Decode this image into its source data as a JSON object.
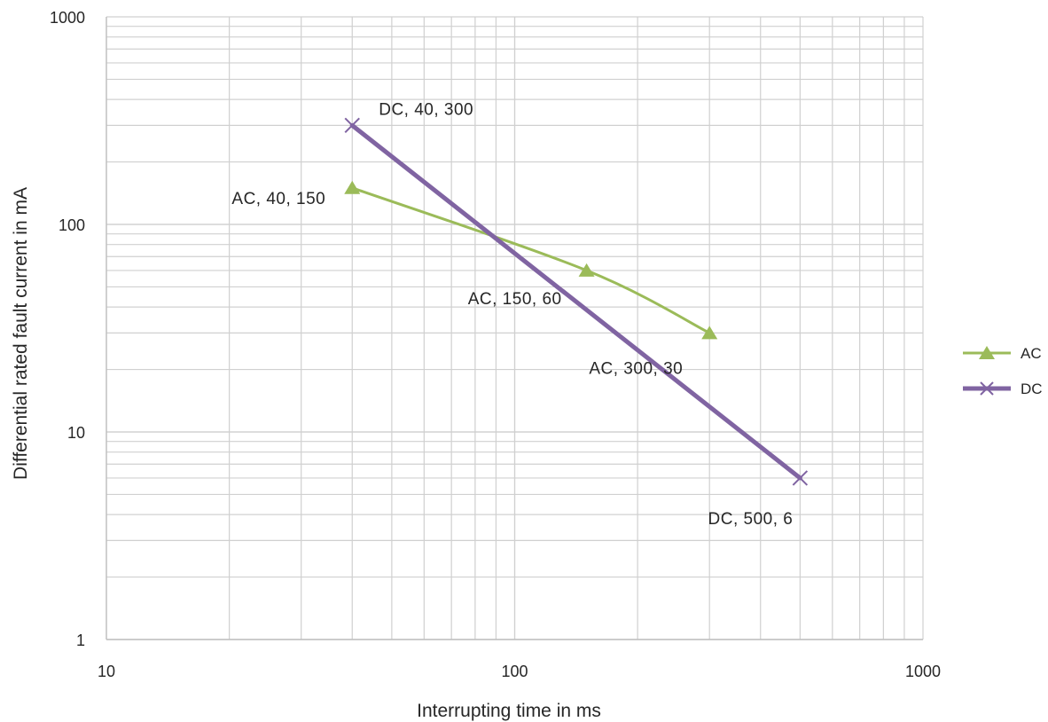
{
  "chart_data": {
    "type": "line",
    "xlabel": "Interrupting time in ms",
    "ylabel": "Differential rated fault current in mA",
    "x_scale": "log",
    "y_scale": "log",
    "xlim": [
      10,
      1000
    ],
    "ylim": [
      1,
      1000
    ],
    "x_ticks": [
      "10",
      "100",
      "1000"
    ],
    "y_ticks": [
      "1",
      "10",
      "100",
      "1000"
    ],
    "grid": true,
    "legend_position": "right",
    "series": [
      {
        "name": "AC",
        "color": "#9bbb59",
        "marker": "triangle",
        "points": [
          {
            "x": 40,
            "y": 150,
            "label": "AC,  40,  150"
          },
          {
            "x": 150,
            "y": 60,
            "label": "AC,  150,  60"
          },
          {
            "x": 300,
            "y": 30,
            "label": "AC,  300,  30"
          }
        ]
      },
      {
        "name": "DC",
        "color": "#8064a2",
        "marker": "x",
        "points": [
          {
            "x": 40,
            "y": 300,
            "label": "DC,  40,  300"
          },
          {
            "x": 500,
            "y": 6,
            "label": "DC,  500,  6"
          }
        ]
      }
    ]
  }
}
